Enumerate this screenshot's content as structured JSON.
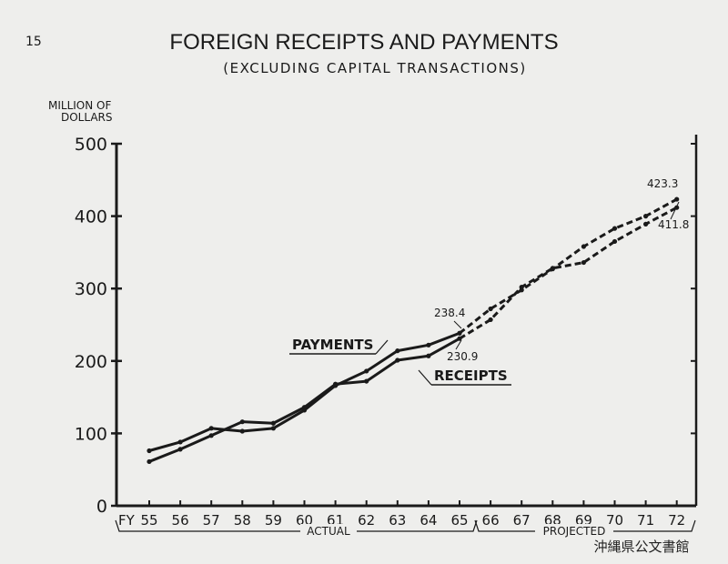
{
  "page_number": "15",
  "archive_mark": "沖縄県公文書館",
  "chart_data": {
    "type": "line",
    "title": "FOREIGN RECEIPTS AND PAYMENTS",
    "subtitle": "(EXCLUDING CAPITAL TRANSACTIONS)",
    "ylabel_line1": "MILLION OF",
    "ylabel_line2": "DOLLARS",
    "fy_label": "FY",
    "categories": [
      "55",
      "56",
      "57",
      "58",
      "59",
      "60",
      "61",
      "62",
      "63",
      "64",
      "65",
      "66",
      "67",
      "68",
      "69",
      "70",
      "71",
      "72"
    ],
    "yticks": [
      0,
      100,
      200,
      300,
      400,
      500
    ],
    "ylim": [
      0,
      500
    ],
    "actual_label": "ACTUAL",
    "projected_label": "PROJECTED",
    "actual_range": [
      "55",
      "65"
    ],
    "projected_range": [
      "65",
      "72"
    ],
    "series": [
      {
        "name": "PAYMENTS",
        "values": [
          76,
          88,
          107,
          103,
          107,
          132,
          166,
          186,
          214,
          222,
          238.4,
          272,
          298,
          327,
          358,
          383,
          400,
          423.3
        ],
        "color": "#1a1a1a"
      },
      {
        "name": "RECEIPTS",
        "values": [
          61,
          78,
          97,
          116,
          114,
          136,
          168,
          172,
          201,
          207,
          230.9,
          257,
          302,
          328,
          336,
          365,
          389,
          411.8
        ],
        "color": "#1a1a1a"
      }
    ],
    "annotations": [
      "238.4",
      "230.9",
      "423.3",
      "411.8"
    ]
  }
}
